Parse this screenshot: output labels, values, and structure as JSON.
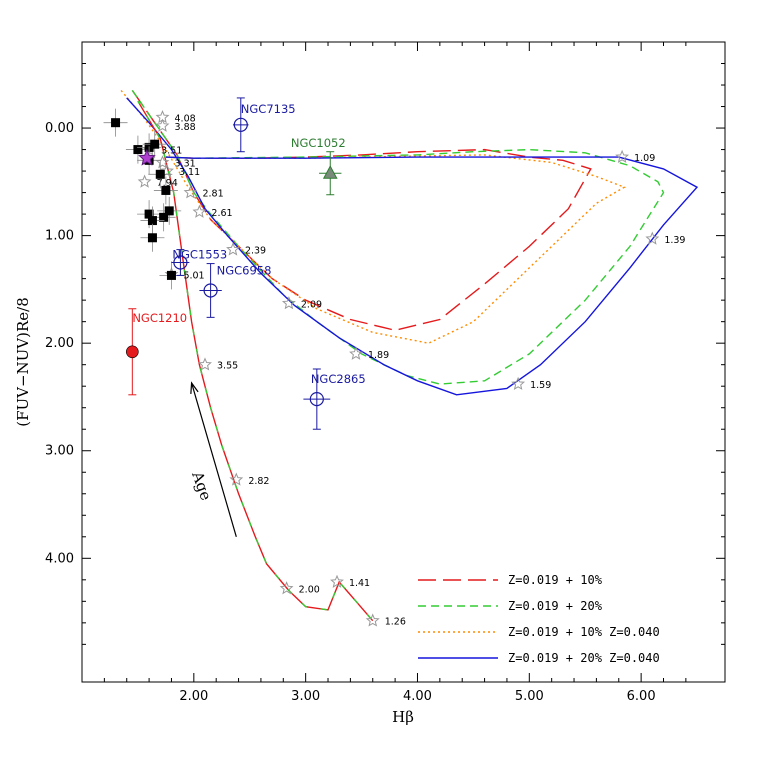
{
  "chart_data": {
    "type": "line",
    "xlabel": "Hβ",
    "ylabel": "(FUV−NUV)Re/8",
    "xlim": [
      1.0,
      6.75
    ],
    "ylim": [
      5.15,
      -0.8
    ],
    "y_inverted": true,
    "x_ticks": [
      2.0,
      3.0,
      4.0,
      5.0,
      6.0
    ],
    "x_tick_labels": [
      "2.00",
      "3.00",
      "4.00",
      "5.00",
      "6.00"
    ],
    "y_ticks": [
      0.0,
      1.0,
      2.0,
      3.0,
      4.0
    ],
    "y_tick_labels": [
      "0.00",
      "1.00",
      "2.00",
      "3.00",
      "4.00"
    ],
    "legend_position": "bottom-right",
    "series": [
      {
        "name": "Z=0.019 + 10%",
        "color": "#e41a1c",
        "dash": "long-dash",
        "points": [
          [
            1.45,
            -0.35
          ],
          [
            1.65,
            -0.05
          ],
          [
            1.85,
            0.25
          ],
          [
            2.0,
            0.6
          ],
          [
            2.15,
            0.85
          ],
          [
            2.4,
            1.1
          ],
          [
            2.7,
            1.4
          ],
          [
            3.0,
            1.6
          ],
          [
            3.4,
            1.78
          ],
          [
            3.8,
            1.88
          ],
          [
            4.2,
            1.78
          ],
          [
            4.6,
            1.45
          ],
          [
            5.0,
            1.1
          ],
          [
            5.35,
            0.75
          ],
          [
            5.55,
            0.38
          ],
          [
            5.3,
            0.3
          ],
          [
            5.0,
            0.27
          ],
          [
            4.6,
            0.2
          ],
          [
            4.0,
            0.22
          ],
          [
            3.5,
            0.25
          ],
          [
            3.0,
            0.27
          ],
          [
            2.5,
            0.28
          ],
          [
            2.0,
            0.28
          ],
          [
            1.75,
            0.27
          ]
        ]
      },
      {
        "name": "Z=0.019 + 20%",
        "color": "#33cc33",
        "dash": "dash",
        "points": [
          [
            1.45,
            -0.35
          ],
          [
            1.65,
            -0.05
          ],
          [
            1.85,
            0.25
          ],
          [
            2.0,
            0.6
          ],
          [
            2.15,
            0.8
          ],
          [
            2.4,
            1.1
          ],
          [
            2.8,
            1.55
          ],
          [
            3.1,
            1.8
          ],
          [
            3.5,
            2.1
          ],
          [
            3.9,
            2.3
          ],
          [
            4.2,
            2.38
          ],
          [
            4.6,
            2.35
          ],
          [
            5.0,
            2.1
          ],
          [
            5.5,
            1.6
          ],
          [
            5.9,
            1.1
          ],
          [
            6.2,
            0.6
          ],
          [
            6.15,
            0.5
          ],
          [
            5.9,
            0.35
          ],
          [
            5.5,
            0.23
          ],
          [
            5.0,
            0.2
          ],
          [
            4.5,
            0.22
          ],
          [
            4.0,
            0.25
          ],
          [
            3.0,
            0.27
          ],
          [
            2.0,
            0.28
          ],
          [
            1.75,
            0.27
          ]
        ]
      },
      {
        "name": "Z=0.019 + 10% Z=0.040",
        "color": "#ff8c00",
        "dash": "dot",
        "points": [
          [
            1.35,
            -0.35
          ],
          [
            1.55,
            -0.1
          ],
          [
            1.75,
            0.2
          ],
          [
            1.95,
            0.55
          ],
          [
            2.15,
            0.85
          ],
          [
            2.4,
            1.1
          ],
          [
            2.7,
            1.4
          ],
          [
            3.1,
            1.68
          ],
          [
            3.6,
            1.9
          ],
          [
            4.1,
            2.0
          ],
          [
            4.5,
            1.8
          ],
          [
            4.9,
            1.4
          ],
          [
            5.3,
            1.0
          ],
          [
            5.6,
            0.7
          ],
          [
            5.85,
            0.55
          ],
          [
            5.6,
            0.45
          ],
          [
            5.2,
            0.32
          ],
          [
            4.6,
            0.25
          ],
          [
            4.0,
            0.26
          ],
          [
            3.0,
            0.28
          ],
          [
            2.0,
            0.28
          ],
          [
            1.75,
            0.27
          ]
        ]
      },
      {
        "name": "Z=0.019 + 20% Z=0.040",
        "color": "#1515dd",
        "dash": "solid",
        "points": [
          [
            1.4,
            -0.28
          ],
          [
            1.6,
            -0.05
          ],
          [
            1.8,
            0.2
          ],
          [
            1.95,
            0.45
          ],
          [
            2.1,
            0.75
          ],
          [
            2.3,
            1.0
          ],
          [
            2.6,
            1.35
          ],
          [
            2.9,
            1.65
          ],
          [
            3.3,
            1.95
          ],
          [
            3.7,
            2.2
          ],
          [
            4.0,
            2.35
          ],
          [
            4.35,
            2.48
          ],
          [
            4.8,
            2.42
          ],
          [
            5.1,
            2.2
          ],
          [
            5.5,
            1.8
          ],
          [
            5.9,
            1.3
          ],
          [
            6.2,
            0.9
          ],
          [
            6.5,
            0.55
          ],
          [
            6.2,
            0.38
          ],
          [
            5.8,
            0.27
          ],
          [
            5.0,
            0.27
          ],
          [
            4.0,
            0.27
          ],
          [
            3.0,
            0.28
          ],
          [
            2.0,
            0.28
          ],
          [
            1.75,
            0.27
          ]
        ]
      },
      {
        "name": "",
        "color": "#e41a1c",
        "dash": "solid-multicolor",
        "points": [
          [
            1.5,
            -0.25
          ],
          [
            1.7,
            0.1
          ],
          [
            1.82,
            0.6
          ],
          [
            1.9,
            1.2
          ],
          [
            1.98,
            1.8
          ],
          [
            2.05,
            2.2
          ],
          [
            2.15,
            2.6
          ],
          [
            2.25,
            2.95
          ],
          [
            2.4,
            3.4
          ],
          [
            2.55,
            3.8
          ],
          [
            2.65,
            4.05
          ],
          [
            2.85,
            4.3
          ],
          [
            3.0,
            4.45
          ],
          [
            3.2,
            4.48
          ],
          [
            3.3,
            4.22
          ],
          [
            3.45,
            4.4
          ],
          [
            3.6,
            4.58
          ]
        ]
      }
    ],
    "age_stars": [
      {
        "x": 1.72,
        "y": -0.1,
        "label": "4.08"
      },
      {
        "x": 1.72,
        "y": -0.02,
        "label": "3.88"
      },
      {
        "x": 1.6,
        "y": 0.2,
        "label": "3.51"
      },
      {
        "x": 1.72,
        "y": 0.32,
        "label": "3.31"
      },
      {
        "x": 1.76,
        "y": 0.4,
        "label": "3.11"
      },
      {
        "x": 1.56,
        "y": 0.5,
        "label": "7.94"
      },
      {
        "x": 1.97,
        "y": 0.6,
        "label": "2.81"
      },
      {
        "x": 2.05,
        "y": 0.78,
        "label": "2.61"
      },
      {
        "x": 2.35,
        "y": 1.13,
        "label": "2.39"
      },
      {
        "x": 1.8,
        "y": 1.36,
        "label": "5.01"
      },
      {
        "x": 2.85,
        "y": 1.63,
        "label": "2.09"
      },
      {
        "x": 3.45,
        "y": 2.1,
        "label": "1.89"
      },
      {
        "x": 2.1,
        "y": 2.2,
        "label": "3.55"
      },
      {
        "x": 4.9,
        "y": 2.38,
        "label": "1.59"
      },
      {
        "x": 2.38,
        "y": 3.27,
        "label": "2.82"
      },
      {
        "x": 2.83,
        "y": 4.28,
        "label": "2.00"
      },
      {
        "x": 3.28,
        "y": 4.22,
        "label": "1.41"
      },
      {
        "x": 3.6,
        "y": 4.58,
        "label": "1.26"
      },
      {
        "x": 5.83,
        "y": 0.27,
        "label": "1.09"
      },
      {
        "x": 6.1,
        "y": 1.03,
        "label": "1.39"
      }
    ],
    "black_squares": [
      [
        1.3,
        -0.05
      ],
      [
        1.5,
        0.2
      ],
      [
        1.6,
        0.18
      ],
      [
        1.65,
        0.15
      ],
      [
        1.6,
        0.3
      ],
      [
        1.7,
        0.43
      ],
      [
        1.75,
        0.58
      ],
      [
        1.78,
        0.77
      ],
      [
        1.6,
        0.8
      ],
      [
        1.73,
        0.83
      ],
      [
        1.63,
        0.86
      ],
      [
        1.63,
        1.02
      ],
      [
        1.8,
        1.37
      ]
    ],
    "galaxies": [
      {
        "name": "NGC7135",
        "x": 2.42,
        "y": -0.03,
        "ex": 0.07,
        "ey": 0.25,
        "marker": "open-circle",
        "color": "#1a1aa0"
      },
      {
        "name": "NGC1052",
        "x": 3.22,
        "y": 0.42,
        "ex": 0.1,
        "ey": 0.2,
        "marker": "filled-triangle",
        "color": "#2e7d32"
      },
      {
        "name": "NGC1553",
        "x": 1.88,
        "y": 1.25,
        "ex": 0.08,
        "ey": 0.12,
        "marker": "open-circle",
        "color": "#1a1aa0"
      },
      {
        "name": "NGC6958",
        "x": 2.15,
        "y": 1.51,
        "ex": 0.1,
        "ey": 0.25,
        "marker": "open-circle",
        "color": "#1a1aa0"
      },
      {
        "name": "NGC2865",
        "x": 3.1,
        "y": 2.52,
        "ex": 0.12,
        "ey": 0.28,
        "marker": "open-circle",
        "color": "#1a1aa0"
      },
      {
        "name": "NGC1210",
        "x": 1.45,
        "y": 2.08,
        "ex": 0.05,
        "ey": 0.4,
        "marker": "filled-circle",
        "color": "#e41a1c"
      }
    ],
    "magenta_star": {
      "x": 1.58,
      "y": 0.28
    },
    "annotation": {
      "text": "Age",
      "arrow_from": [
        2.38,
        3.8
      ],
      "arrow_to": [
        1.98,
        2.37
      ]
    }
  }
}
